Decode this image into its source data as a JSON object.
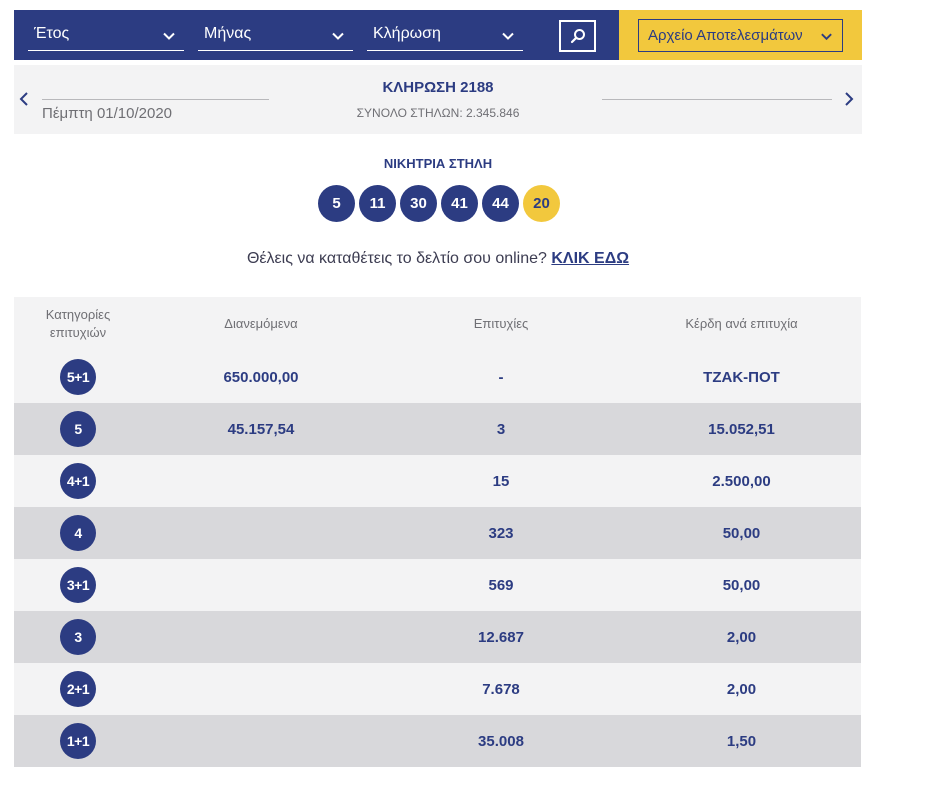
{
  "filters": {
    "year_label": "Έτος",
    "month_label": "Μήνας",
    "draw_label": "Κλήρωση",
    "archive_label": "Αρχείο Αποτελεσμάτων"
  },
  "draw": {
    "title": "ΚΛΗΡΩΣΗ 2188",
    "date": "Πέμπτη 01/10/2020",
    "total_columns": "ΣΥΝΟΛΟ ΣΤΗΛΩΝ: 2.345.846"
  },
  "winning": {
    "title": "ΝΙΚΗΤΡΙΑ ΣΤΗΛΗ",
    "numbers": [
      "5",
      "11",
      "30",
      "41",
      "44"
    ],
    "joker": "20"
  },
  "cta": {
    "text": "Θέλεις να καταθέτεις το δελτίο σου online?",
    "link": "ΚΛΙΚ ΕΔΩ"
  },
  "table": {
    "headers": [
      "Κατηγορίες επιτυχιών",
      "Διανεμόμενα",
      "Επιτυχίες",
      "Κέρδη ανά επιτυχία"
    ],
    "rows": [
      {
        "category": "5+1",
        "distributed": "650.000,00",
        "winners": "-",
        "prize": "ΤΖΑΚ-ΠΟΤ"
      },
      {
        "category": "5",
        "distributed": "45.157,54",
        "winners": "3",
        "prize": "15.052,51"
      },
      {
        "category": "4+1",
        "distributed": "",
        "winners": "15",
        "prize": "2.500,00"
      },
      {
        "category": "4",
        "distributed": "",
        "winners": "323",
        "prize": "50,00"
      },
      {
        "category": "3+1",
        "distributed": "",
        "winners": "569",
        "prize": "50,00"
      },
      {
        "category": "3",
        "distributed": "",
        "winners": "12.687",
        "prize": "2,00"
      },
      {
        "category": "2+1",
        "distributed": "",
        "winners": "7.678",
        "prize": "2,00"
      },
      {
        "category": "1+1",
        "distributed": "",
        "winners": "35.008",
        "prize": "1,50"
      }
    ]
  },
  "colors": {
    "primary": "#2c3c82",
    "accent": "#f2c83d",
    "row_light": "#f3f3f4",
    "row_dark": "#d8d8db"
  }
}
